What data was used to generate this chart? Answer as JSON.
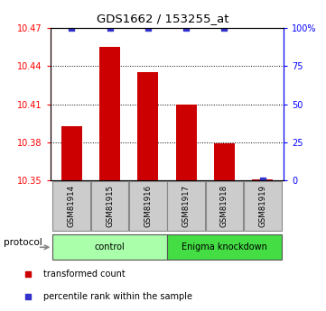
{
  "title": "GDS1662 / 153255_at",
  "samples": [
    "GSM81914",
    "GSM81915",
    "GSM81916",
    "GSM81917",
    "GSM81918",
    "GSM81919"
  ],
  "bar_values": [
    10.393,
    10.455,
    10.435,
    10.41,
    10.379,
    10.351
  ],
  "percentile_values": [
    100,
    100,
    100,
    100,
    100,
    0
  ],
  "bar_color": "#cc0000",
  "dot_color": "#3333cc",
  "ylim_left": [
    10.35,
    10.47
  ],
  "ylim_right": [
    0,
    100
  ],
  "yticks_left": [
    10.35,
    10.38,
    10.41,
    10.44,
    10.47
  ],
  "yticks_right": [
    0,
    25,
    50,
    75,
    100
  ],
  "ytick_labels_right": [
    "0",
    "25",
    "50",
    "75",
    "100%"
  ],
  "grid_values": [
    10.38,
    10.41,
    10.44
  ],
  "protocol_groups": [
    {
      "label": "control",
      "start": 0,
      "end": 3,
      "color": "#aaffaa"
    },
    {
      "label": "Enigma knockdown",
      "start": 3,
      "end": 6,
      "color": "#44dd44"
    }
  ],
  "protocol_label": "protocol",
  "legend_items": [
    {
      "color": "#cc0000",
      "label": "transformed count"
    },
    {
      "color": "#3333cc",
      "label": "percentile rank within the sample"
    }
  ],
  "bar_width": 0.55,
  "box_color": "#cccccc"
}
